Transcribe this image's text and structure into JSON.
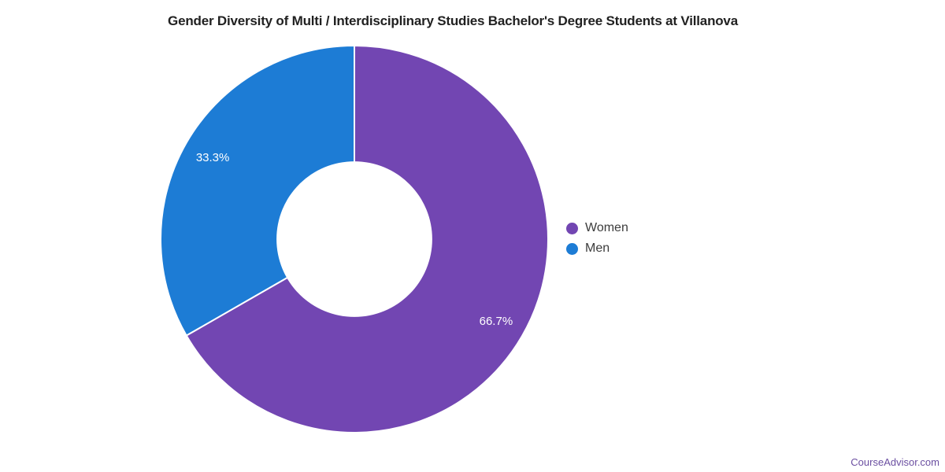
{
  "page": {
    "watermark": "CourseAdvisor.com"
  },
  "colors": {
    "background": "#FFFFFF",
    "title_text": "#212121",
    "legend_text": "#3C3C3C",
    "slice_label_text": "#FFFFFF",
    "slice_border": "#FFFFFF",
    "watermark_text": "#6B4FA1"
  },
  "chart_data": {
    "type": "pie",
    "donut": true,
    "title": "Gender Diversity of Multi / Interdisciplinary Studies Bachelor's Degree Students at Villanova",
    "legend_position": "right",
    "start_angle_deg": 0,
    "direction": "clockwise",
    "inner_radius_fraction": 0.402,
    "label_radius_fraction": 0.845,
    "slices": [
      {
        "label": "Women",
        "value": 66.7,
        "display": "66.7%",
        "color": "#7246B2"
      },
      {
        "label": "Men",
        "value": 33.3,
        "display": "33.3%",
        "color": "#1D7CD5"
      }
    ]
  }
}
